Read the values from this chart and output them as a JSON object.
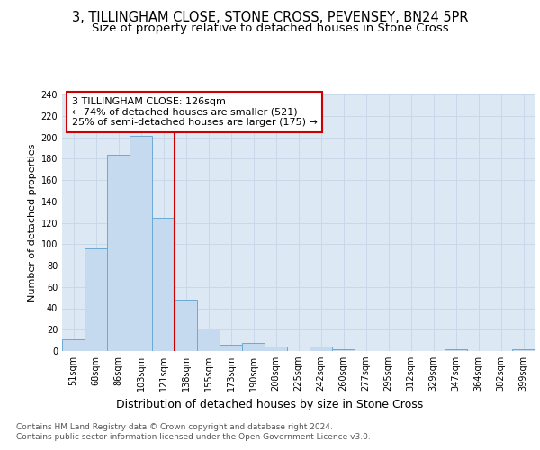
{
  "title1": "3, TILLINGHAM CLOSE, STONE CROSS, PEVENSEY, BN24 5PR",
  "title2": "Size of property relative to detached houses in Stone Cross",
  "xlabel": "Distribution of detached houses by size in Stone Cross",
  "ylabel": "Number of detached properties",
  "footnote1": "Contains HM Land Registry data © Crown copyright and database right 2024.",
  "footnote2": "Contains public sector information licensed under the Open Government Licence v3.0.",
  "categories": [
    "51sqm",
    "68sqm",
    "86sqm",
    "103sqm",
    "121sqm",
    "138sqm",
    "155sqm",
    "173sqm",
    "190sqm",
    "208sqm",
    "225sqm",
    "242sqm",
    "260sqm",
    "277sqm",
    "295sqm",
    "312sqm",
    "329sqm",
    "347sqm",
    "364sqm",
    "382sqm",
    "399sqm"
  ],
  "values": [
    11,
    96,
    184,
    201,
    125,
    48,
    21,
    6,
    8,
    4,
    0,
    4,
    2,
    0,
    0,
    0,
    0,
    2,
    0,
    0,
    2
  ],
  "bar_color": "#c5d9ef",
  "bar_edge_color": "#6aaad4",
  "vline_x": 4.5,
  "vline_color": "#cc0000",
  "annotation_title": "3 TILLINGHAM CLOSE: 126sqm",
  "annotation_line1": "← 74% of detached houses are smaller (521)",
  "annotation_line2": "25% of semi-detached houses are larger (175) →",
  "annotation_box_color": "#cc0000",
  "annotation_bg": "#ffffff",
  "ylim": [
    0,
    240
  ],
  "yticks": [
    0,
    20,
    40,
    60,
    80,
    100,
    120,
    140,
    160,
    180,
    200,
    220,
    240
  ],
  "grid_color": "#c8d8e8",
  "bg_color": "#dde8f5",
  "title1_fontsize": 10.5,
  "title2_fontsize": 9.5,
  "xlabel_fontsize": 9,
  "ylabel_fontsize": 8,
  "tick_fontsize": 7,
  "annotation_fontsize": 8,
  "footnote_fontsize": 6.5
}
